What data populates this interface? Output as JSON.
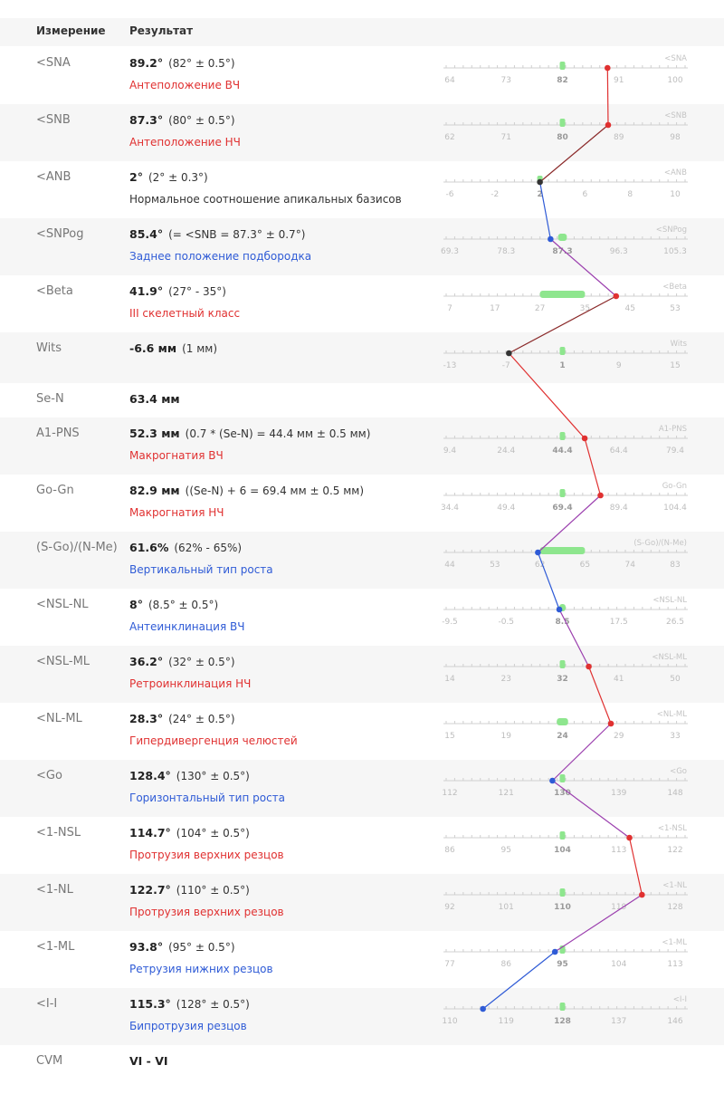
{
  "header": {
    "col_measure": "Измерение",
    "col_result": "Результат"
  },
  "colors": {
    "red": "#e03131",
    "blue": "#2f5bd6",
    "black": "#333333",
    "norm": "#8ee68e",
    "row_shade": "#f6f6f6"
  },
  "rows": [
    {
      "label": "<SNA",
      "value": "89.2°",
      "ref": "(82° ± 0.5°)",
      "interp": "Антеположение ВЧ",
      "color": "red",
      "scale": {
        "label": "<SNA",
        "ticks": [
          "64",
          "73",
          "82",
          "91",
          "100"
        ],
        "min": 64,
        "max": 100,
        "value": 89.2,
        "norm": [
          82,
          82
        ],
        "dot": "red",
        "bold_tick": "82"
      }
    },
    {
      "label": "<SNB",
      "value": "87.3°",
      "ref": "(80° ± 0.5°)",
      "interp": "Антеположение НЧ",
      "color": "red",
      "scale": {
        "label": "<SNB",
        "ticks": [
          "62",
          "71",
          "80",
          "89",
          "98"
        ],
        "min": 62,
        "max": 98,
        "value": 87.3,
        "norm": [
          80,
          80
        ],
        "dot": "red",
        "bold_tick": "80"
      }
    },
    {
      "label": "<ANB",
      "value": "2°",
      "ref": "(2° ± 0.3°)",
      "interp": "Нормальное соотношение апикальных базисов",
      "color": "black",
      "scale": {
        "label": "<ANB",
        "ticks": [
          "-6",
          "-2",
          "2",
          "6",
          "8",
          "10"
        ],
        "tick_values": [
          -6,
          -2,
          2,
          6,
          8,
          10
        ],
        "min": -8,
        "max": 12,
        "value": 2,
        "norm": [
          2,
          2
        ],
        "dot": "black",
        "bold_tick": "2"
      }
    },
    {
      "label": "<SNPog",
      "value": "85.4°",
      "ref": "(= <SNB = 87.3° ± 0.7°)",
      "interp": "Заднее положение подбородка",
      "color": "blue",
      "scale": {
        "label": "<SNPog",
        "ticks": [
          "69.3",
          "78.3",
          "87.3",
          "96.3",
          "105.3"
        ],
        "min": 69.3,
        "max": 105.3,
        "value": 85.4,
        "norm": [
          86.6,
          88.0
        ],
        "dot": "blue",
        "bold_tick": "87.3"
      }
    },
    {
      "label": "<Beta",
      "value": "41.9°",
      "ref": "(27° - 35°)",
      "interp": "III скелетный класс",
      "color": "red",
      "scale": {
        "label": "<Beta",
        "ticks": [
          "7",
          "17",
          "27",
          "35",
          "45",
          "53"
        ],
        "tick_values": [
          7,
          17,
          27,
          35,
          45,
          53
        ],
        "min": 7,
        "max": 53,
        "value": 41.9,
        "norm": [
          27,
          35
        ],
        "dot": "red",
        "bold_tick": ""
      }
    },
    {
      "label": "Wits",
      "value": "-6.6 мм",
      "ref": "(1 мм)",
      "interp": "",
      "color": "black",
      "scale": {
        "label": "Wits",
        "ticks": [
          "-13",
          "-7",
          "1",
          "9",
          "15"
        ],
        "tick_values": [
          -13,
          -7,
          1,
          9,
          15
        ],
        "min": -13,
        "max": 15,
        "value": -6.6,
        "norm": [
          1,
          1
        ],
        "dot": "black",
        "bold_tick": "1"
      }
    },
    {
      "label": "Se-N",
      "value": "63.4 мм",
      "ref": "",
      "interp": "",
      "color": "black",
      "scale": null
    },
    {
      "label": "A1-PNS",
      "value": "52.3 мм",
      "ref": "(0.7 * (Se-N) = 44.4 мм ± 0.5 мм)",
      "interp": "Макрогнатия ВЧ",
      "color": "red",
      "scale": {
        "label": "A1-PNS",
        "ticks": [
          "9.4",
          "24.4",
          "44.4",
          "64.4",
          "79.4"
        ],
        "tick_values": [
          9.4,
          24.4,
          44.4,
          64.4,
          79.4
        ],
        "min": 9.4,
        "max": 79.4,
        "value": 52.3,
        "norm": [
          44.4,
          44.4
        ],
        "dot": "red",
        "bold_tick": "44.4"
      }
    },
    {
      "label": "Go-Gn",
      "value": "82.9 мм",
      "ref": "((Se-N) + 6 = 69.4 мм ± 0.5 мм)",
      "interp": "Макрогнатия НЧ",
      "color": "red",
      "scale": {
        "label": "Go-Gn",
        "ticks": [
          "34.4",
          "49.4",
          "69.4",
          "89.4",
          "104.4"
        ],
        "tick_values": [
          34.4,
          49.4,
          69.4,
          89.4,
          104.4
        ],
        "min": 34.4,
        "max": 104.4,
        "value": 82.9,
        "norm": [
          69.4,
          69.4
        ],
        "dot": "red",
        "bold_tick": "69.4"
      }
    },
    {
      "label": "(S-Go)/(N-Me)",
      "value": "61.6%",
      "ref": "(62% - 65%)",
      "interp": "Вертикальный тип роста",
      "color": "blue",
      "scale": {
        "label": "(S-Go)/(N-Me)",
        "ticks": [
          "44",
          "53",
          "62",
          "65",
          "74",
          "83"
        ],
        "tick_values": [
          44,
          53,
          62,
          65,
          74,
          83
        ],
        "min": 44,
        "max": 83,
        "value": 61.6,
        "norm": [
          62,
          65
        ],
        "dot": "blue",
        "bold_tick": ""
      }
    },
    {
      "label": "<NSL-NL",
      "value": "8°",
      "ref": "(8.5° ± 0.5°)",
      "interp": "Антеинклинация ВЧ",
      "color": "blue",
      "scale": {
        "label": "<NSL-NL",
        "ticks": [
          "-9.5",
          "-0.5",
          "8.5",
          "17.5",
          "26.5"
        ],
        "min": -9.5,
        "max": 26.5,
        "value": 8,
        "norm": [
          8.0,
          9.0
        ],
        "dot": "blue",
        "bold_tick": "8.5"
      }
    },
    {
      "label": "<NSL-ML",
      "value": "36.2°",
      "ref": "(32° ± 0.5°)",
      "interp": "Ретроинклинация НЧ",
      "color": "red",
      "scale": {
        "label": "<NSL-ML",
        "ticks": [
          "14",
          "23",
          "32",
          "41",
          "50"
        ],
        "min": 14,
        "max": 50,
        "value": 36.2,
        "norm": [
          32,
          32
        ],
        "dot": "red",
        "bold_tick": "32"
      }
    },
    {
      "label": "<NL-ML",
      "value": "28.3°",
      "ref": "(24° ± 0.5°)",
      "interp": "Гипердивергенция челюстей",
      "color": "red",
      "scale": {
        "label": "<NL-ML",
        "ticks": [
          "15",
          "19",
          "24",
          "29",
          "33"
        ],
        "tick_values": [
          15,
          19,
          24,
          29,
          33
        ],
        "min": 15,
        "max": 33,
        "value": 28.3,
        "norm": [
          23.5,
          24.5
        ],
        "dot": "red",
        "bold_tick": "24"
      }
    },
    {
      "label": "<Go",
      "value": "128.4°",
      "ref": "(130° ± 0.5°)",
      "interp": "Горизонтальный тип роста",
      "color": "blue",
      "scale": {
        "label": "<Go",
        "ticks": [
          "112",
          "121",
          "130",
          "139",
          "148"
        ],
        "min": 112,
        "max": 148,
        "value": 128.4,
        "norm": [
          130,
          130
        ],
        "dot": "blue",
        "bold_tick": "130"
      }
    },
    {
      "label": "<1-NSL",
      "value": "114.7°",
      "ref": "(104° ± 0.5°)",
      "interp": "Протрузия верхних резцов",
      "color": "red",
      "scale": {
        "label": "<1-NSL",
        "ticks": [
          "86",
          "95",
          "104",
          "113",
          "122"
        ],
        "min": 86,
        "max": 122,
        "value": 114.7,
        "norm": [
          104,
          104
        ],
        "dot": "red",
        "bold_tick": "104"
      }
    },
    {
      "label": "<1-NL",
      "value": "122.7°",
      "ref": "(110° ± 0.5°)",
      "interp": "Протрузия верхних резцов",
      "color": "red",
      "scale": {
        "label": "<1-NL",
        "ticks": [
          "92",
          "101",
          "110",
          "119",
          "128"
        ],
        "min": 92,
        "max": 128,
        "value": 122.7,
        "norm": [
          110,
          110
        ],
        "dot": "red",
        "bold_tick": "110"
      }
    },
    {
      "label": "<1-ML",
      "value": "93.8°",
      "ref": "(95° ± 0.5°)",
      "interp": "Ретрузия нижних резцов",
      "color": "blue",
      "scale": {
        "label": "<1-ML",
        "ticks": [
          "77",
          "86",
          "95",
          "104",
          "113"
        ],
        "min": 77,
        "max": 113,
        "value": 93.8,
        "norm": [
          95,
          95
        ],
        "dot": "blue",
        "bold_tick": "95"
      }
    },
    {
      "label": "<I-I",
      "value": "115.3°",
      "ref": "(128° ± 0.5°)",
      "interp": "Бипротрузия резцов",
      "color": "blue",
      "scale": {
        "label": "<I-I",
        "ticks": [
          "110",
          "119",
          "128",
          "137",
          "146"
        ],
        "min": 110,
        "max": 146,
        "value": 115.3,
        "norm": [
          128,
          128
        ],
        "dot": "blue",
        "bold_tick": "128"
      }
    },
    {
      "label": "CVM",
      "value": "VI - VI",
      "ref": "",
      "interp": "",
      "color": "black",
      "scale": null
    }
  ]
}
